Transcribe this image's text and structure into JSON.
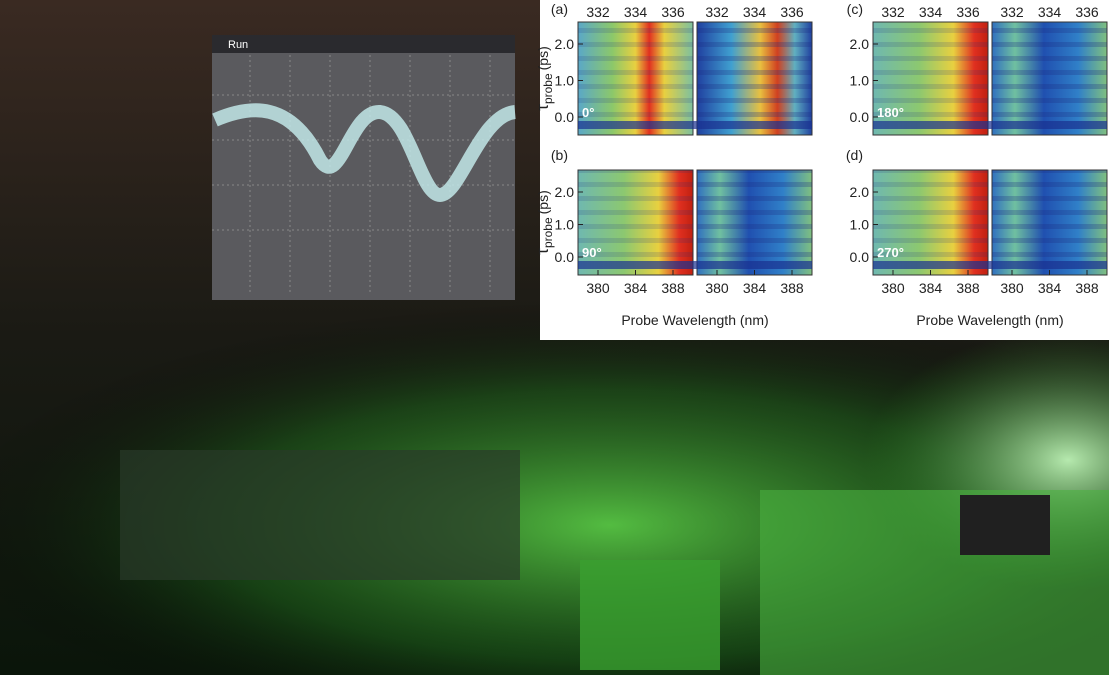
{
  "photo": {
    "screen_label": "Run"
  },
  "figure": {
    "top_ticks": [
      "332",
      "334",
      "336"
    ],
    "y_ticks": [
      "2.0",
      "1.0",
      "0.0"
    ],
    "bottom_ticks": [
      "380",
      "384",
      "388"
    ],
    "x_label": "Probe Wavelength (nm)",
    "y_label": {
      "symbol": "τ",
      "subscript": "probe",
      "unit": "(ps)"
    },
    "panels": [
      {
        "label": "(a)",
        "angle": "0°"
      },
      {
        "label": "(b)",
        "angle": "90°"
      },
      {
        "label": "(c)",
        "angle": "180°"
      },
      {
        "label": "(d)",
        "angle": "270°"
      }
    ]
  }
}
